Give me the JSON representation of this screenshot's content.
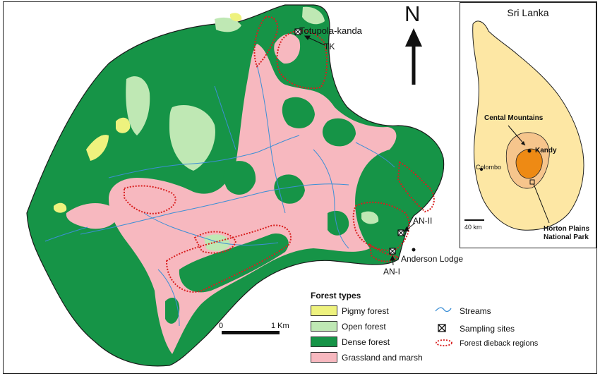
{
  "main_map": {
    "labels": {
      "totupola": "Totupola-kanda",
      "tk": "TK",
      "an_ii": "AN-II",
      "anderson": "Anderson Lodge",
      "an_i": "AN-I"
    },
    "north": "N",
    "scale": {
      "zero": "0",
      "end": "1 Km"
    }
  },
  "legend": {
    "title": "Forest types",
    "items": [
      {
        "label": "Pigmy forest",
        "color": "#eef27e"
      },
      {
        "label": "Open forest",
        "color": "#bfe8b4"
      },
      {
        "label": "Dense forest",
        "color": "#169447"
      },
      {
        "label": "Grassland and marsh",
        "color": "#f7b8bf"
      }
    ],
    "streams": "Streams",
    "sampling": "Sampling sites",
    "dieback": "Forest dieback regions",
    "stream_color": "#3c8fd6",
    "dieback_color": "#d81e1e"
  },
  "inset": {
    "title": "Sri Lanka",
    "cental_mountains": "Cental Mountains",
    "kandy": "Kandy",
    "colombo": "Colombo",
    "scale": "40 km",
    "park_line1": "Horton Plains",
    "park_line2": "National Park",
    "island_color": "#fde7a4",
    "highland_color": "#f6c58c",
    "park_color": "#ee8a14"
  }
}
